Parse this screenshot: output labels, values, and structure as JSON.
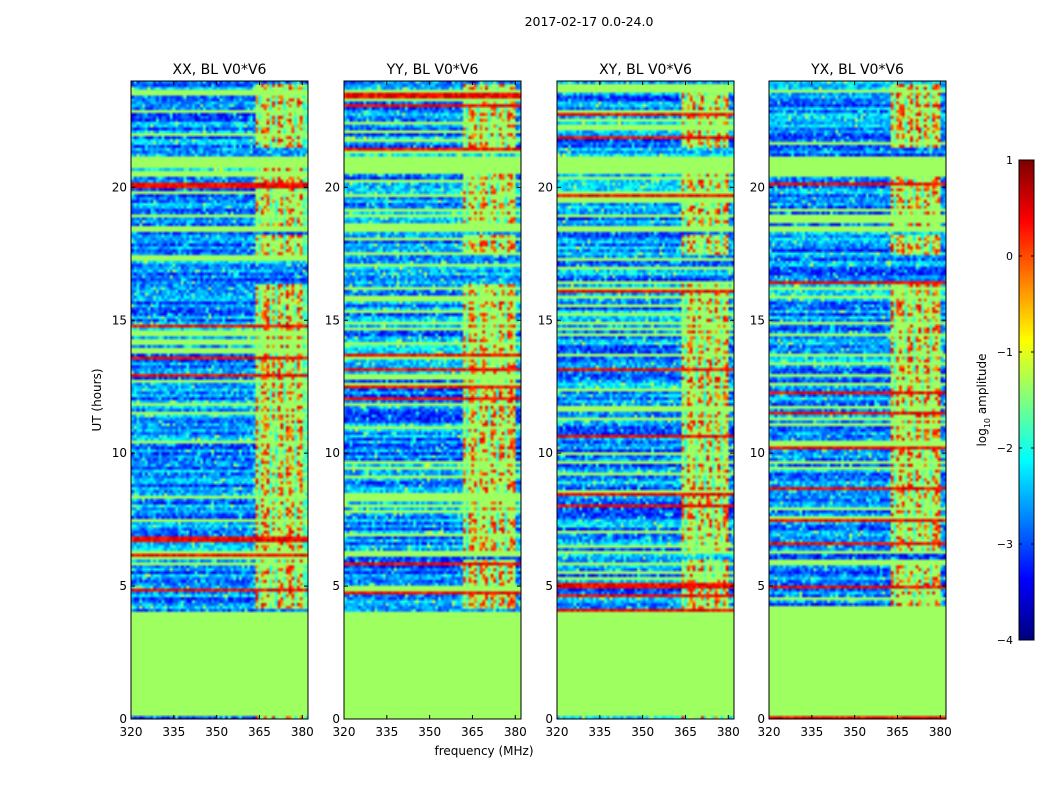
{
  "chart_data": {
    "type": "heatmap",
    "suptitle": "2017-02-17 0.0-24.0",
    "xlabel": "frequency (MHz)",
    "ylabel": "UT (hours)",
    "xlim": [
      320,
      382
    ],
    "ylim": [
      0,
      24
    ],
    "xticks": [
      320,
      335,
      350,
      365,
      380
    ],
    "yticks": [
      0,
      5,
      10,
      15,
      20
    ],
    "flagged_value": -1.35,
    "panels": [
      {
        "title": "XX, BL V0*V6",
        "rfi_band_mhz": [
          363.5,
          383.5
        ],
        "rfi_channels_mhz": [
          365,
          369,
          371,
          374,
          378,
          381
        ],
        "seed": 11
      },
      {
        "title": "YY, BL V0*V6",
        "rfi_band_mhz": [
          361.5,
          380.5
        ],
        "rfi_channels_mhz": [
          363,
          367,
          371,
          374,
          377
        ],
        "seed": 23
      },
      {
        "title": "XY, BL V0*V6",
        "rfi_band_mhz": [
          363.5,
          380.5
        ],
        "rfi_channels_mhz": [
          365,
          369,
          372,
          375,
          378
        ],
        "seed": 37
      },
      {
        "title": "YX, BL V0*V6",
        "rfi_band_mhz": [
          362.5,
          380.5
        ],
        "rfi_channels_mhz": [
          364,
          368,
          371,
          374,
          377
        ],
        "seed": 51
      }
    ],
    "colorbar": {
      "label_prefix": "log",
      "label_subscript": "10",
      "label_suffix": " amplitude",
      "min": -4,
      "max": 1,
      "ticks": [
        1,
        0,
        -1,
        -2,
        -3,
        -4
      ],
      "tick_labels": [
        "1",
        "0",
        "−1",
        "−2",
        "−3",
        "−4"
      ],
      "colormap": "jet"
    },
    "flagged_time_ranges_hours": [
      [
        0.1,
        4.05
      ],
      [
        6.2,
        6.35
      ],
      [
        17.0,
        17.05
      ],
      [
        18.3,
        18.55
      ],
      [
        19.3,
        19.35
      ],
      [
        20.7,
        21.15
      ],
      [
        23.6,
        23.65
      ]
    ],
    "rfi_time_ranges_hours": [
      [
        0.0,
        0.1
      ],
      [
        4.1,
        6.0
      ],
      [
        6.2,
        12.5
      ],
      [
        12.6,
        16.4
      ],
      [
        17.5,
        18.2
      ],
      [
        18.6,
        21.0
      ],
      [
        21.5,
        23.9
      ]
    ]
  }
}
